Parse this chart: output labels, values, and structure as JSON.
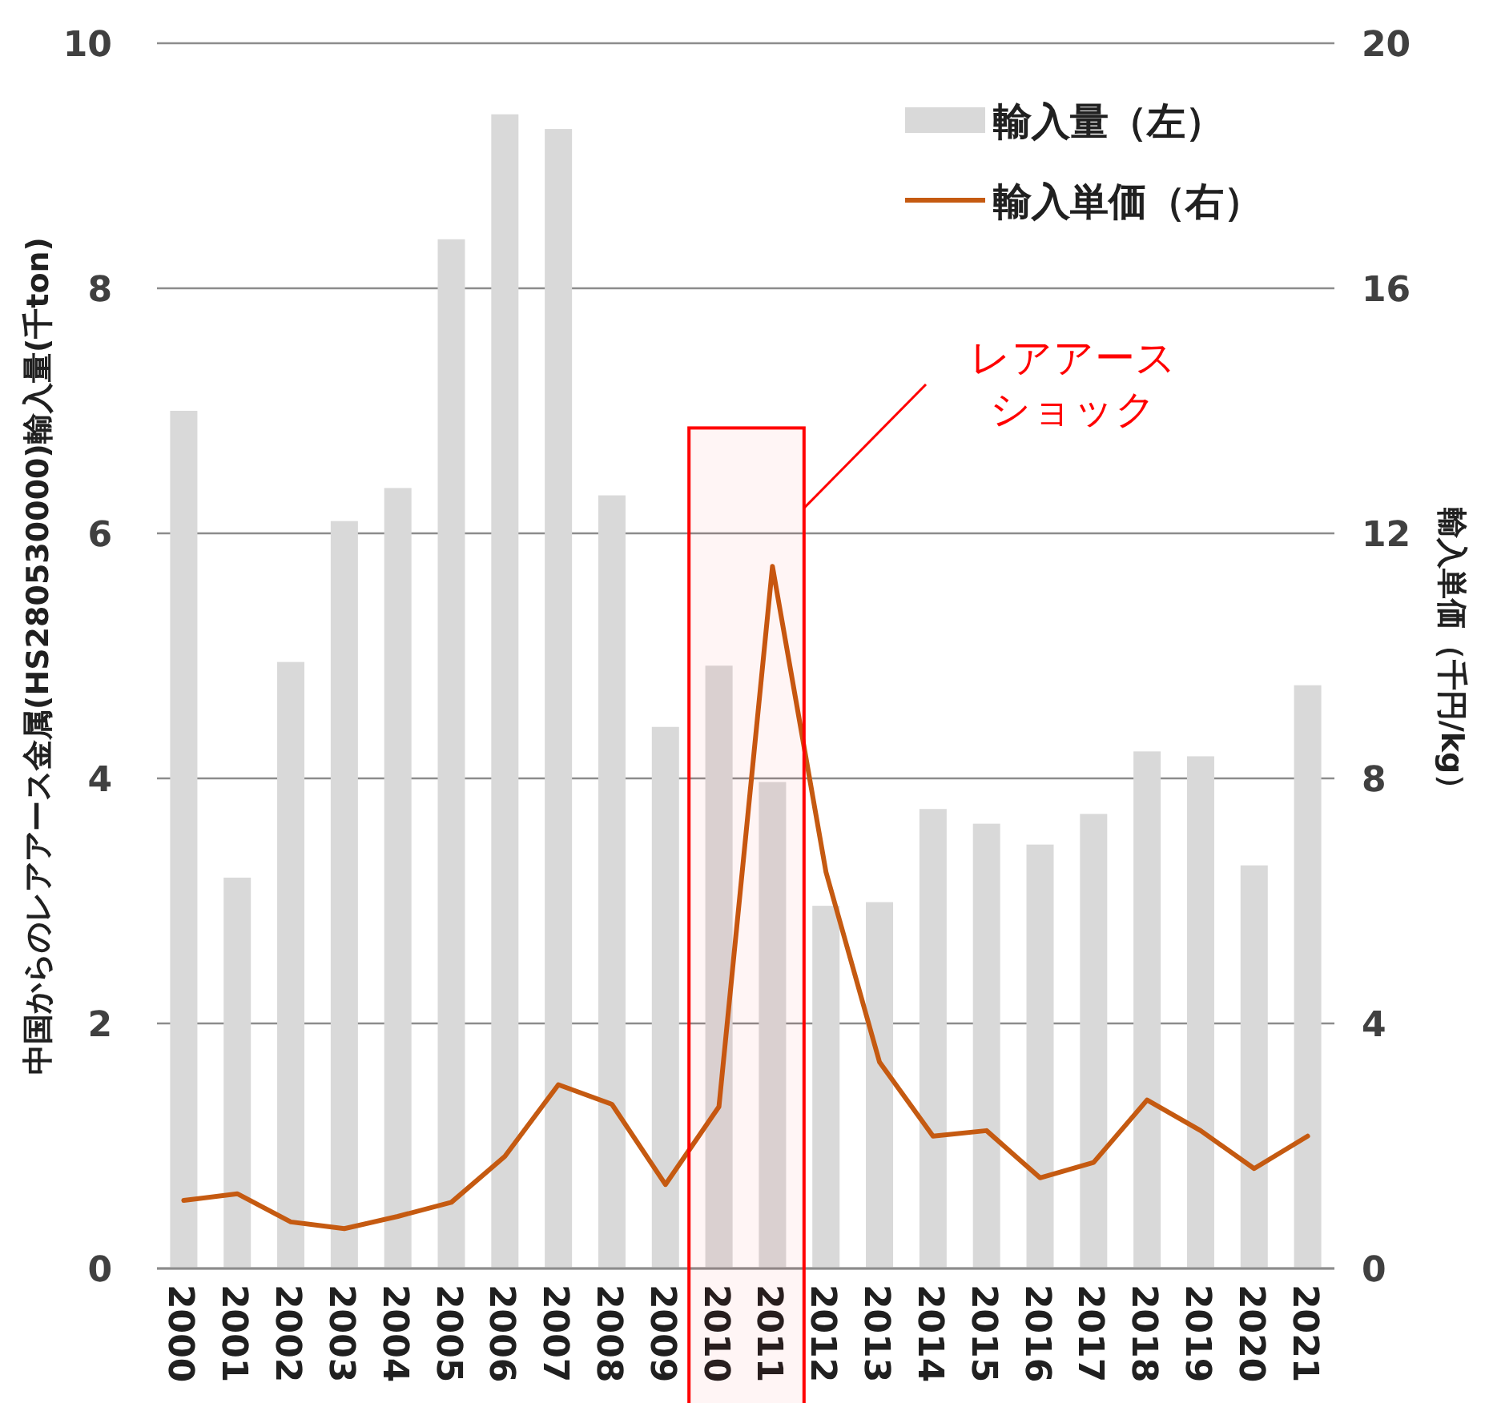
{
  "chart_data": {
    "type": "bar",
    "categories": [
      "2000",
      "2001",
      "2002",
      "2003",
      "2004",
      "2005",
      "2006",
      "2007",
      "2008",
      "2009",
      "2010",
      "2011",
      "2012",
      "2013",
      "2014",
      "2015",
      "2016",
      "2017",
      "2018",
      "2019",
      "2020",
      "2021"
    ],
    "series": [
      {
        "name": "輸入量（左）",
        "color": "#d9d9d9",
        "values": [
          7.0,
          3.19,
          4.95,
          6.1,
          6.37,
          8.4,
          9.42,
          9.3,
          6.31,
          4.42,
          4.92,
          3.97,
          2.96,
          2.99,
          3.75,
          3.63,
          3.46,
          3.71,
          4.22,
          4.18,
          3.29,
          4.76
        ]
      },
      {
        "name": "輸入単価（右）",
        "type": "line",
        "axis": "y2",
        "color": "#c55a11",
        "values": [
          1.11,
          1.22,
          0.76,
          0.65,
          0.85,
          1.08,
          1.83,
          3.0,
          2.68,
          1.37,
          2.64,
          11.46,
          6.47,
          3.37,
          2.16,
          2.25,
          1.48,
          1.73,
          2.75,
          2.25,
          1.63,
          2.16
        ]
      }
    ],
    "ylabel": "中国からのレアアース金属(HS280530000)輸入量(千ton)",
    "y2label": "輸入単価（千円/kg）",
    "ylim": [
      0,
      10
    ],
    "yticks": [
      0,
      2,
      4,
      6,
      8,
      10
    ],
    "y2lim": [
      0,
      20
    ],
    "y2ticks": [
      0,
      4,
      8,
      12,
      16,
      20
    ],
    "grid": "y",
    "legend": "top right",
    "bands": [
      {
        "axis": "x",
        "from": "2010",
        "to": "2011",
        "label": "レアアースショック",
        "color": "#ff0000"
      }
    ]
  }
}
